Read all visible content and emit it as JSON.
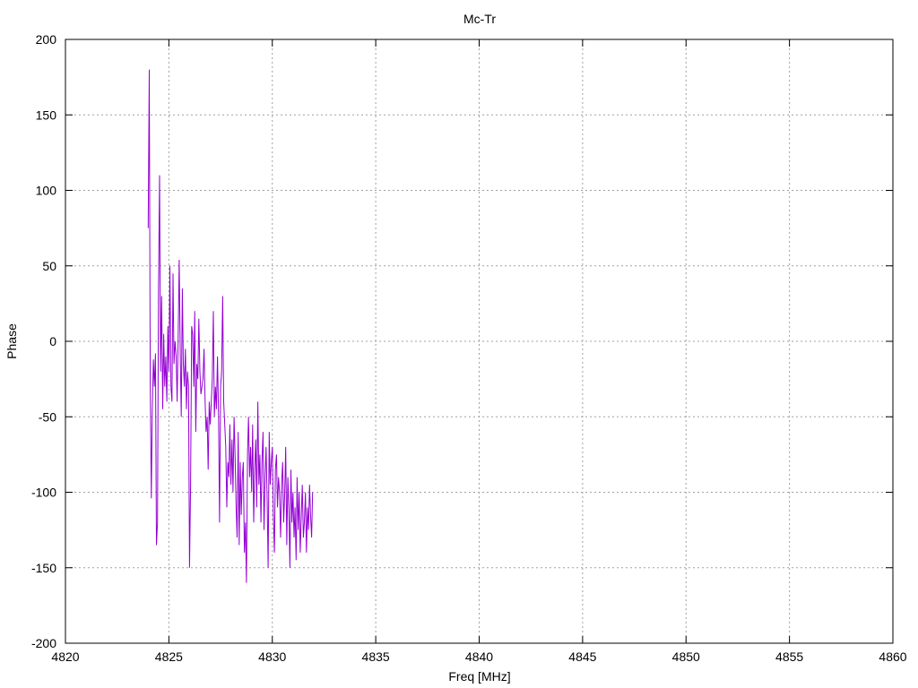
{
  "chart_data": {
    "type": "line",
    "title": "Mc-Tr",
    "xlabel": "Freq [MHz]",
    "ylabel": "Phase",
    "xlim": [
      4820,
      4860
    ],
    "ylim": [
      -200,
      200
    ],
    "xticks": [
      4820,
      4825,
      4830,
      4835,
      4840,
      4845,
      4850,
      4855,
      4860
    ],
    "yticks": [
      -200,
      -150,
      -100,
      -50,
      0,
      50,
      100,
      150,
      200
    ],
    "xtick_labels": [
      "4820",
      "4825",
      "4830",
      "4835",
      "4840",
      "4845",
      "4850",
      "4855",
      "4860"
    ],
    "ytick_labels": [
      "-200",
      "-150",
      "-100",
      "-50",
      "0",
      "50",
      "100",
      "150",
      "200"
    ],
    "grid": true,
    "legend": "none",
    "series_color": "#9400D3",
    "series": [
      {
        "x_start": 4824.0,
        "x_step": 0.05,
        "values": [
          75,
          180,
          -28,
          -104,
          -45,
          -12,
          -30,
          -8,
          -135,
          -120,
          35,
          110,
          -20,
          30,
          -45,
          5,
          -30,
          -10,
          -40,
          10,
          -20,
          50,
          -30,
          -40,
          45,
          -15,
          0,
          -10,
          -40,
          5,
          54,
          -10,
          -50,
          35,
          -15,
          -30,
          -5,
          -45,
          -20,
          -30,
          -150,
          -95,
          10,
          5,
          -30,
          20,
          -60,
          -15,
          -25,
          15,
          -20,
          -35,
          -30,
          -25,
          -5,
          -40,
          -60,
          -50,
          -85,
          -40,
          -55,
          -40,
          -25,
          20,
          -50,
          -30,
          -45,
          -10,
          -50,
          -120,
          -30,
          -20,
          30,
          -40,
          -55,
          -70,
          -110,
          -80,
          -90,
          -55,
          -95,
          -65,
          -100,
          -50,
          -75,
          -110,
          -130,
          -60,
          -135,
          -80,
          -115,
          -90,
          -80,
          -140,
          -120,
          -160,
          -75,
          -50,
          -90,
          -70,
          -100,
          -55,
          -120,
          -85,
          -65,
          -110,
          -40,
          -95,
          -75,
          -120,
          -80,
          -60,
          -125,
          -90,
          -70,
          -105,
          -150,
          -60,
          -95,
          -80,
          -70,
          -115,
          -140,
          -85,
          -75,
          -110,
          -90,
          -100,
          -130,
          -95,
          -80,
          -120,
          -100,
          -70,
          -135,
          -90,
          -110,
          -150,
          -85,
          -120,
          -100,
          -130,
          -110,
          -145,
          -90,
          -125,
          -100,
          -140,
          -115,
          -95,
          -130,
          -120,
          -100,
          -140,
          -110,
          -125,
          -95,
          -115,
          -130,
          -100
        ]
      }
    ]
  }
}
